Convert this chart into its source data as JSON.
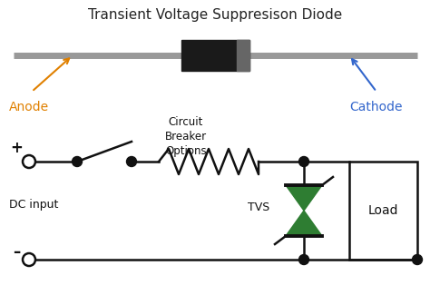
{
  "title": "Transient Voltage Suppresison Diode",
  "title_fontsize": 11,
  "title_color": "#222222",
  "bg_color": "#ffffff",
  "anode_label": "Anode",
  "cathode_label": "Cathode",
  "anode_color": "#e08000",
  "cathode_color": "#3366cc",
  "circuit_label": "Circuit\nBreaker\nOptions",
  "dc_label": "DC input",
  "tvs_label": "TVS",
  "load_label": "Load",
  "plus_label": "+",
  "minus_label": "–",
  "wire_color": "#111111",
  "diode_body_color": "#1a1a1a",
  "diode_body_highlight": "#666666",
  "diode_lead_color": "#999999",
  "tvs_color": "#2e7d32",
  "dot_color": "#111111",
  "line_width": 1.8
}
